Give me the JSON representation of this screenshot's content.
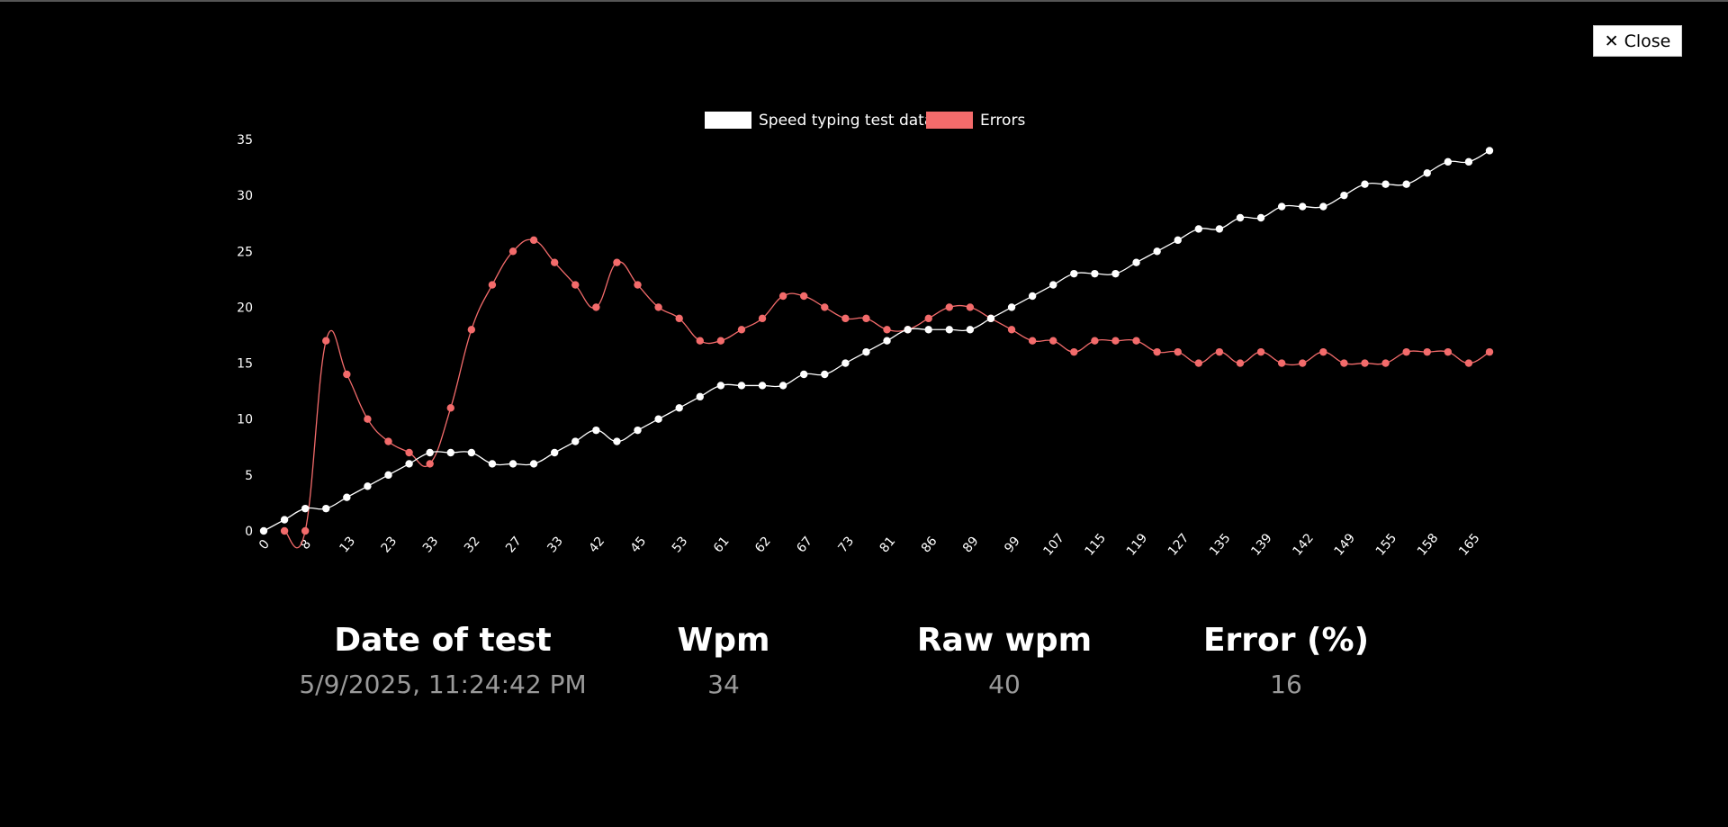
{
  "close_button": {
    "label": "Close",
    "icon": "close-icon"
  },
  "chart_data": {
    "type": "line",
    "legend_position": "top",
    "grid": false,
    "ylim": [
      0,
      35
    ],
    "yticks": [
      "0",
      "5",
      "10",
      "15",
      "20",
      "25",
      "30",
      "35"
    ],
    "xticks": [
      "0",
      "8",
      "13",
      "23",
      "33",
      "32",
      "27",
      "33",
      "42",
      "45",
      "53",
      "61",
      "62",
      "67",
      "73",
      "81",
      "86",
      "89",
      "99",
      "107",
      "115",
      "119",
      "127",
      "135",
      "139",
      "142",
      "149",
      "155",
      "158",
      "165"
    ],
    "series": [
      {
        "name": "Speed typing test data",
        "color": "#ffffff",
        "values": [
          0,
          1,
          2,
          2,
          3,
          4,
          5,
          6,
          7,
          7,
          7,
          6,
          6,
          6,
          7,
          8,
          9,
          8,
          9,
          10,
          11,
          12,
          13,
          13,
          13,
          13,
          14,
          14,
          15,
          16,
          17,
          18,
          18,
          18,
          18,
          19,
          20,
          21,
          22,
          23,
          23,
          23,
          24,
          25,
          26,
          27,
          27,
          28,
          28,
          29,
          29,
          29,
          30,
          31,
          31,
          31,
          32,
          33,
          33,
          34
        ]
      },
      {
        "name": "Errors",
        "color": "#f36b6b",
        "values": [
          null,
          0,
          0,
          17,
          14,
          10,
          8,
          7,
          6,
          11,
          18,
          22,
          25,
          26,
          24,
          22,
          20,
          24,
          22,
          20,
          19,
          17,
          17,
          18,
          19,
          21,
          21,
          20,
          19,
          19,
          18,
          18,
          19,
          20,
          20,
          19,
          18,
          17,
          17,
          16,
          17,
          17,
          17,
          16,
          16,
          15,
          16,
          15,
          16,
          15,
          15,
          16,
          15,
          15,
          15,
          16,
          16,
          16,
          15,
          16
        ]
      }
    ]
  },
  "stats": [
    {
      "label": "Date of test",
      "value": "5/9/2025, 11:24:42 PM"
    },
    {
      "label": "Wpm",
      "value": "34"
    },
    {
      "label": "Raw wpm",
      "value": "40"
    },
    {
      "label": "Error (%)",
      "value": "16"
    }
  ]
}
